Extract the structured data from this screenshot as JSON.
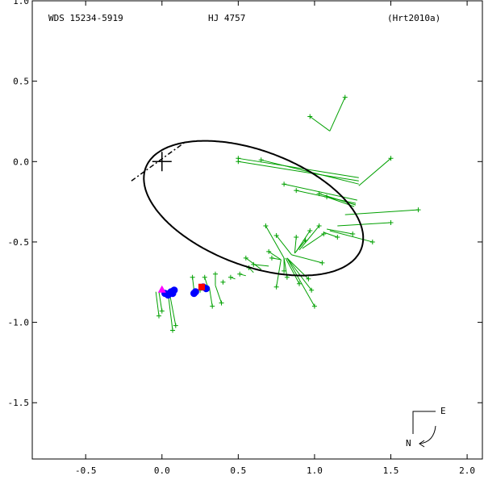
{
  "header": {
    "wds_id": "WDS 15234-5919",
    "discoverer": "HJ 4757",
    "reference": "(Hrt2010a)"
  },
  "compass": {
    "east_label": "E",
    "north_label": "N"
  },
  "colors": {
    "orbit": "#000000",
    "measures": "#00a000",
    "speckle": "#0000ff",
    "recent": "#ff00ff",
    "highlight": "#ff0000"
  },
  "chart_data": {
    "type": "scatter",
    "title": "HJ 4757",
    "xlim": [
      -0.85,
      2.1
    ],
    "ylim": [
      -1.85,
      1.0
    ],
    "x_ticks": [
      -0.5,
      0.0,
      0.5,
      1.0,
      1.5,
      2.0
    ],
    "y_ticks": [
      1.0,
      0.5,
      0.0,
      -0.5,
      -1.0,
      -1.5
    ],
    "x_tick_labels": [
      "-0.5",
      "0.0",
      "0.5",
      "1.0",
      "1.5",
      "2.0"
    ],
    "y_tick_labels": [
      "1.0",
      "0.5",
      "0.0",
      "-0.5",
      "-1.0",
      "-1.5"
    ],
    "primary_star": [
      0.0,
      0.0
    ],
    "orbit_ellipse": {
      "center": [
        0.6,
        -0.29
      ],
      "semi_axis_1": 0.75,
      "semi_axis_2": 0.36,
      "rotation_deg": -19
    },
    "line_of_nodes": [
      [
        -0.2,
        -0.12
      ],
      [
        0.15,
        0.12
      ]
    ],
    "micrometer_measures": [
      {
        "obs": [
          1.2,
          0.4
        ],
        "orbit": [
          1.1,
          0.19
        ]
      },
      {
        "obs": [
          0.97,
          0.28
        ],
        "orbit": [
          1.1,
          0.19
        ]
      },
      {
        "obs": [
          1.5,
          0.02
        ],
        "orbit": [
          1.29,
          -0.15
        ]
      },
      {
        "obs": [
          0.5,
          0.02
        ],
        "orbit": [
          1.29,
          -0.1
        ]
      },
      {
        "obs": [
          0.5,
          0.0
        ],
        "orbit": [
          1.29,
          -0.12
        ]
      },
      {
        "obs": [
          0.65,
          0.01
        ],
        "orbit": [
          1.29,
          -0.14
        ]
      },
      {
        "obs": [
          0.8,
          -0.14
        ],
        "orbit": [
          1.28,
          -0.24
        ]
      },
      {
        "obs": [
          0.88,
          -0.18
        ],
        "orbit": [
          1.27,
          -0.26
        ]
      },
      {
        "obs": [
          1.03,
          -0.2
        ],
        "orbit": [
          1.27,
          -0.27
        ]
      },
      {
        "obs": [
          1.08,
          -0.22
        ],
        "orbit": [
          1.26,
          -0.28
        ]
      },
      {
        "obs": [
          1.68,
          -0.3
        ],
        "orbit": [
          1.2,
          -0.33
        ]
      },
      {
        "obs": [
          1.5,
          -0.38
        ],
        "orbit": [
          1.15,
          -0.4
        ]
      },
      {
        "obs": [
          1.38,
          -0.5
        ],
        "orbit": [
          1.1,
          -0.43
        ]
      },
      {
        "obs": [
          1.25,
          -0.45
        ],
        "orbit": [
          1.08,
          -0.42
        ]
      },
      {
        "obs": [
          1.15,
          -0.47
        ],
        "orbit": [
          1.06,
          -0.44
        ]
      },
      {
        "obs": [
          0.68,
          -0.4
        ],
        "orbit": [
          0.8,
          -0.6
        ]
      },
      {
        "obs": [
          0.75,
          -0.46
        ],
        "orbit": [
          0.85,
          -0.58
        ]
      },
      {
        "obs": [
          0.88,
          -0.47
        ],
        "orbit": [
          0.87,
          -0.57
        ]
      },
      {
        "obs": [
          0.94,
          -0.49
        ],
        "orbit": [
          0.87,
          -0.57
        ]
      },
      {
        "obs": [
          0.97,
          -0.43
        ],
        "orbit": [
          0.88,
          -0.56
        ]
      },
      {
        "obs": [
          1.03,
          -0.4
        ],
        "orbit": [
          0.9,
          -0.55
        ]
      },
      {
        "obs": [
          1.06,
          -0.45
        ],
        "orbit": [
          0.92,
          -0.54
        ]
      },
      {
        "obs": [
          0.7,
          -0.56
        ],
        "orbit": [
          0.78,
          -0.61
        ]
      },
      {
        "obs": [
          0.72,
          -0.6
        ],
        "orbit": [
          0.78,
          -0.61
        ]
      },
      {
        "obs": [
          0.8,
          -0.68
        ],
        "orbit": [
          0.8,
          -0.6
        ]
      },
      {
        "obs": [
          0.82,
          -0.72
        ],
        "orbit": [
          0.8,
          -0.6
        ]
      },
      {
        "obs": [
          0.9,
          -0.76
        ],
        "orbit": [
          0.81,
          -0.6
        ]
      },
      {
        "obs": [
          0.96,
          -0.73
        ],
        "orbit": [
          0.82,
          -0.6
        ]
      },
      {
        "obs": [
          0.98,
          -0.8
        ],
        "orbit": [
          0.82,
          -0.6
        ]
      },
      {
        "obs": [
          1.0,
          -0.9
        ],
        "orbit": [
          0.82,
          -0.6
        ]
      },
      {
        "obs": [
          1.05,
          -0.63
        ],
        "orbit": [
          0.85,
          -0.58
        ]
      },
      {
        "obs": [
          0.75,
          -0.78
        ],
        "orbit": [
          0.78,
          -0.61
        ]
      },
      {
        "obs": [
          0.6,
          -0.64
        ],
        "orbit": [
          0.7,
          -0.65
        ]
      },
      {
        "obs": [
          0.57,
          -0.66
        ],
        "orbit": [
          0.6,
          -0.69
        ]
      },
      {
        "obs": [
          0.51,
          -0.7
        ],
        "orbit": [
          0.55,
          -0.71
        ]
      },
      {
        "obs": [
          0.45,
          -0.72
        ],
        "orbit": [
          0.48,
          -0.73
        ]
      },
      {
        "obs": [
          0.4,
          -0.75
        ],
        "orbit": [
          0.4,
          -0.76
        ]
      },
      {
        "obs": [
          0.35,
          -0.7
        ],
        "orbit": [
          0.35,
          -0.77
        ]
      },
      {
        "obs": [
          0.28,
          -0.72
        ],
        "orbit": [
          0.3,
          -0.78
        ]
      },
      {
        "obs": [
          0.25,
          -0.8
        ],
        "orbit": [
          0.27,
          -0.79
        ]
      },
      {
        "obs": [
          0.2,
          -0.72
        ],
        "orbit": [
          0.21,
          -0.8
        ]
      },
      {
        "obs": [
          0.39,
          -0.88
        ],
        "orbit": [
          0.35,
          -0.77
        ]
      },
      {
        "obs": [
          0.33,
          -0.9
        ],
        "orbit": [
          0.31,
          -0.78
        ]
      },
      {
        "obs": [
          0.55,
          -0.6
        ],
        "orbit": [
          0.65,
          -0.67
        ]
      },
      {
        "obs": [
          -0.02,
          -0.96
        ],
        "orbit": [
          -0.04,
          -0.81
        ]
      },
      {
        "obs": [
          0.0,
          -0.93
        ],
        "orbit": [
          -0.02,
          -0.81
        ]
      },
      {
        "obs": [
          0.07,
          -1.05
        ],
        "orbit": [
          0.04,
          -0.82
        ]
      },
      {
        "obs": [
          0.09,
          -1.02
        ],
        "orbit": [
          0.05,
          -0.82
        ]
      }
    ],
    "speckle_measures": [
      [
        0.02,
        -0.82
      ],
      [
        0.04,
        -0.83
      ],
      [
        0.05,
        -0.82
      ],
      [
        0.06,
        -0.81
      ],
      [
        0.07,
        -0.82
      ],
      [
        0.08,
        -0.8
      ],
      [
        0.21,
        -0.82
      ],
      [
        0.22,
        -0.81
      ],
      [
        0.27,
        -0.78
      ],
      [
        0.29,
        -0.79
      ]
    ],
    "recent_measure": [
      0.0,
      -0.8
    ],
    "highlighted_measure": [
      0.26,
      -0.78
    ]
  }
}
